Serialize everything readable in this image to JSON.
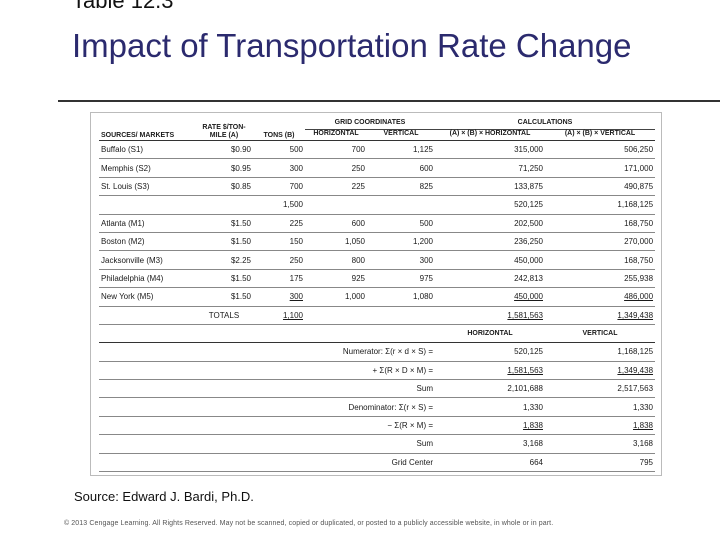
{
  "slide": {
    "table_label": "Table 12.3",
    "title": "Impact of Transportation Rate Change",
    "source": "Source:  Edward J. Bardi, Ph.D.",
    "copyright": "© 2013 Cengage Learning. All Rights Reserved. May not be scanned, copied or duplicated, or posted to a publicly accessible website, in whole or in part."
  },
  "table": {
    "headers": {
      "sources": "SOURCES/ MARKETS",
      "rate": "RATE $/TON-MILE (A)",
      "tons": "TONS (B)",
      "grid_group": "GRID COORDINATES",
      "horizontal": "HORIZONTAL",
      "vertical": "VERTICAL",
      "calc_group": "CALCULATIONS",
      "calc_h": "(A) × (B) × HORIZONTAL",
      "calc_v": "(A) × (B) × VERTICAL"
    },
    "rows": [
      [
        "Buffalo (S1)",
        "$0.90",
        "500",
        "700",
        "1,125",
        "315,000",
        "506,250"
      ],
      [
        "Memphis (S2)",
        "$0.95",
        "300",
        "250",
        "600",
        "71,250",
        "171,000"
      ],
      [
        "St. Louis (S3)",
        "$0.85",
        "700",
        "225",
        "825",
        "133,875",
        "490,875"
      ],
      [
        "",
        "",
        "1,500",
        "",
        "",
        "520,125",
        "1,168,125"
      ],
      [
        "Atlanta (M1)",
        "$1.50",
        "225",
        "600",
        "500",
        "202,500",
        "168,750"
      ],
      [
        "Boston (M2)",
        "$1.50",
        "150",
        "1,050",
        "1,200",
        "236,250",
        "270,000"
      ],
      [
        "Jacksonville (M3)",
        "$2.25",
        "250",
        "800",
        "300",
        "450,000",
        "168,750"
      ],
      [
        "Philadelphia (M4)",
        "$1.50",
        "175",
        "925",
        "975",
        "242,813",
        "255,938"
      ],
      [
        "New York (M5)",
        "$1.50",
        "300",
        "1,000",
        "1,080",
        "450,000",
        "486,000"
      ],
      [
        "",
        "TOTALS",
        "1,100",
        "",
        "",
        "1,581,563",
        "1,349,438"
      ]
    ],
    "summary_headers": {
      "horizontal": "HORIZONTAL",
      "vertical": "VERTICAL"
    },
    "summary": [
      [
        "Numerator: Σ(r × d × S) =",
        "520,125",
        "1,168,125"
      ],
      [
        "+ Σ(R × D × M) =",
        "1,581,563",
        "1,349,438"
      ],
      [
        "Sum",
        "2,101,688",
        "2,517,563"
      ],
      [
        "Denominator: Σ(r × S) =",
        "1,330",
        "1,330"
      ],
      [
        "− Σ(R × M) =",
        "1,838",
        "1,838"
      ],
      [
        "Sum",
        "3,168",
        "3,168"
      ],
      [
        "Grid Center",
        "664",
        "795"
      ]
    ]
  }
}
